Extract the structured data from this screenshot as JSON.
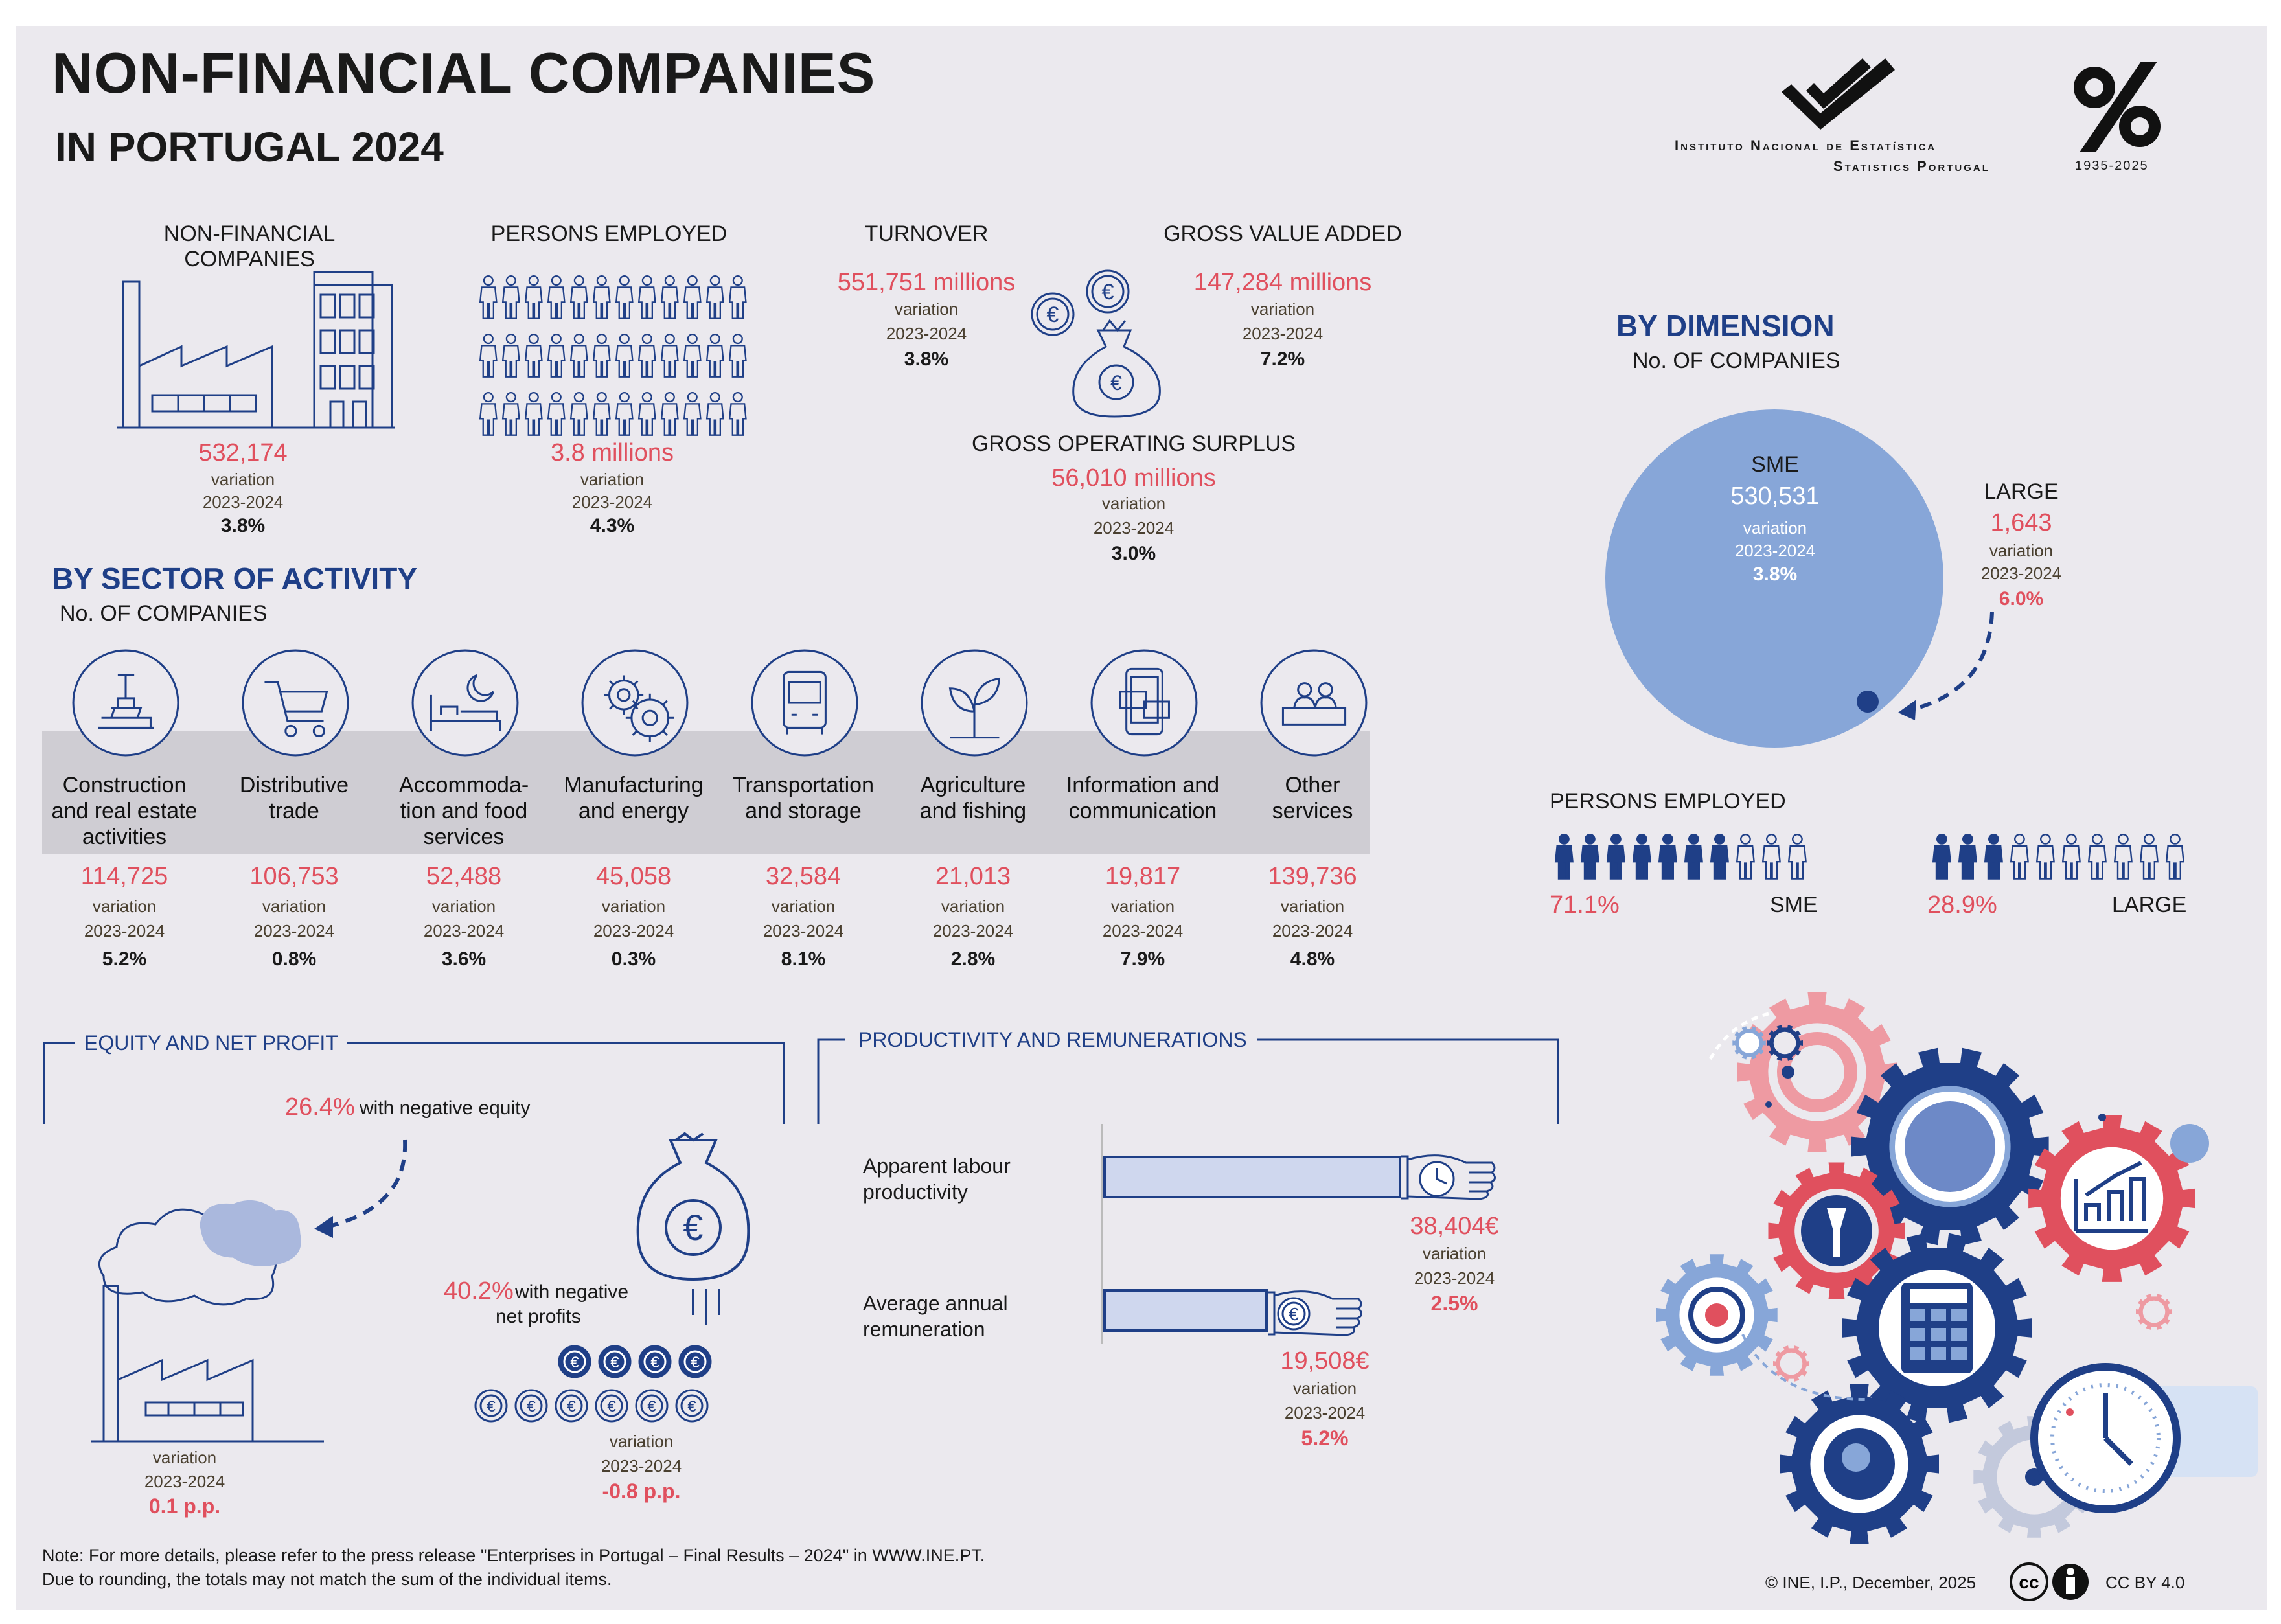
{
  "header": {
    "title": "NON-FINANCIAL COMPANIES",
    "subtitle": "IN PORTUGAL 2024",
    "institute_line1": "Instituto Nacional de Estatística",
    "institute_line2": "Statistics Portugal",
    "anniv_years": "1935-2025"
  },
  "common": {
    "variation": "variation",
    "period": "2023-2024"
  },
  "kpi": {
    "companies": {
      "label": "NON-FINANCIAL COMPANIES",
      "value": "532,174",
      "change": "3.8%"
    },
    "employed": {
      "label": "PERSONS EMPLOYED",
      "value": "3.8 millions",
      "change": "4.3%"
    },
    "turnover": {
      "label": "TURNOVER",
      "value": "551,751 millions",
      "change": "3.8%"
    },
    "gva": {
      "label": "GROSS VALUE ADDED",
      "value": "147,284 millions",
      "change": "7.2%"
    },
    "gos": {
      "label": "GROSS OPERATING SURPLUS",
      "value": "56,010 millions",
      "change": "3.0%"
    }
  },
  "sector": {
    "title": "BY SECTOR OF ACTIVITY",
    "subtitle": "No. OF COMPANIES",
    "items": [
      {
        "l1": "Construction",
        "l2": "and real estate",
        "l3": "activities",
        "value": "114,725",
        "change": "5.2%",
        "icon": "crane-icon"
      },
      {
        "l1": "Distributive",
        "l2": "trade",
        "l3": "",
        "value": "106,753",
        "change": "0.8%",
        "icon": "cart-icon"
      },
      {
        "l1": "Accommoda-",
        "l2": "tion and food",
        "l3": "services",
        "value": "52,488",
        "change": "3.6%",
        "icon": "bed-icon"
      },
      {
        "l1": "Manufacturing",
        "l2": "and energy",
        "l3": "",
        "value": "45,058",
        "change": "0.3%",
        "icon": "gears-icon"
      },
      {
        "l1": "Transportation",
        "l2": "and storage",
        "l3": "",
        "value": "32,584",
        "change": "8.1%",
        "icon": "bus-icon"
      },
      {
        "l1": "Agriculture",
        "l2": "and fishing",
        "l3": "",
        "value": "21,013",
        "change": "2.8%",
        "icon": "plant-icon"
      },
      {
        "l1": "Information and",
        "l2": "communication",
        "l3": "",
        "value": "19,817",
        "change": "7.9%",
        "icon": "phone-icon"
      },
      {
        "l1": "Other",
        "l2": "services",
        "l3": "",
        "value": "139,736",
        "change": "4.8%",
        "icon": "desk-icon"
      }
    ]
  },
  "dimension": {
    "title": "BY DIMENSION",
    "subtitle": "No. OF COMPANIES",
    "sme_label": "SME",
    "sme_value": "530,531",
    "sme_change": "3.8%",
    "large_label": "LARGE",
    "large_value": "1,643",
    "large_change": "6.0%",
    "employed_label": "PERSONS EMPLOYED",
    "sme_emp_share": "71.1%",
    "large_emp_share": "28.9%",
    "sme_emp_fraction": 0.711,
    "large_emp_fraction": 0.289
  },
  "equity": {
    "title": "EQUITY AND NET PROFIT",
    "neg_equity_value": "26.4%",
    "neg_equity_text": "with negative equity",
    "neg_equity_change": "0.1 p.p.",
    "neg_profit_value": "40.2%",
    "neg_profit_text1": "with negative",
    "neg_profit_text2": "net profits",
    "neg_profit_change": "-0.8 p.p."
  },
  "productivity": {
    "title": "PRODUCTIVITY AND REMUNERATIONS",
    "labour_l1": "Apparent labour",
    "labour_l2": "productivity",
    "labour_value": "38,404€",
    "labour_change": "2.5%",
    "remun_l1": "Average annual",
    "remun_l2": "remuneration",
    "remun_value": "19,508€",
    "remun_change": "5.2%"
  },
  "footer": {
    "note1": "Note: For more details, please refer to the press release \"Enterprises in Portugal – Final Results – 2024\" in WWW.INE.PT.",
    "note2": "Due to rounding, the totals may not match the sum of the individual items.",
    "copyright": "© INE, I.P., December, 2025",
    "license": "CC BY 4.0"
  },
  "colors": {
    "navy": "#1f3f87",
    "red": "#e0505e",
    "light_blue": "#87a6d8",
    "panel": "#ebe9ee"
  }
}
